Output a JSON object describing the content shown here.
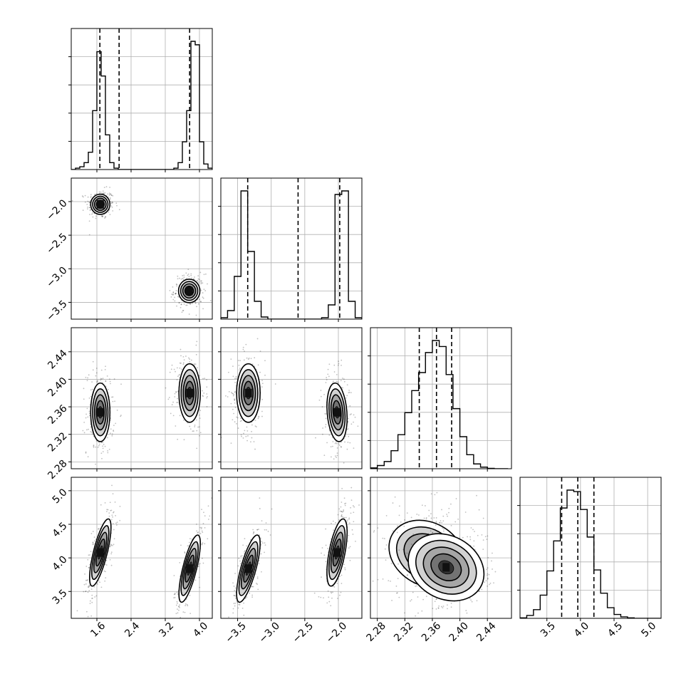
{
  "chart_data": {
    "type": "scatter",
    "grid": true,
    "parameters": [
      {
        "ticks": [
          "1.6",
          "2.4",
          "3.2",
          "4.0"
        ],
        "range": [
          1.0,
          4.3
        ],
        "quantiles": [
          1.67,
          2.12,
          3.77
        ],
        "hist": {
          "edges": [
            1.0,
            1.1,
            1.2,
            1.3,
            1.4,
            1.5,
            1.6,
            1.7,
            1.8,
            1.9,
            2.0,
            2.1,
            2.2,
            2.3,
            2.4,
            2.5,
            2.6,
            2.7,
            2.8,
            2.9,
            3.0,
            3.1,
            3.2,
            3.3,
            3.4,
            3.5,
            3.6,
            3.7,
            3.8,
            3.9,
            4.0,
            4.1,
            4.2,
            4.3
          ],
          "counts": [
            0,
            2,
            4,
            10,
            25,
            85,
            170,
            135,
            50,
            10,
            2,
            0,
            0,
            0,
            0,
            0,
            0,
            0,
            0,
            0,
            0,
            0,
            0,
            0,
            2,
            10,
            40,
            85,
            185,
            180,
            40,
            8,
            2
          ]
        }
      },
      {
        "ticks": [
          "-3.5",
          "-3.0",
          "-2.5",
          "-2.0"
        ],
        "range": [
          -3.75,
          -1.65
        ],
        "quantiles": [
          -3.35,
          -2.6,
          -1.98
        ],
        "hist": {
          "edges": [
            -3.75,
            -3.65,
            -3.55,
            -3.45,
            -3.35,
            -3.25,
            -3.15,
            -3.05,
            -2.95,
            -2.85,
            -2.75,
            -2.65,
            -2.55,
            -2.45,
            -2.35,
            -2.25,
            -2.15,
            -2.05,
            -1.95,
            -1.85,
            -1.75,
            -1.65
          ],
          "counts": [
            2,
            12,
            60,
            180,
            95,
            25,
            3,
            0,
            0,
            0,
            0,
            0,
            0,
            0,
            0,
            2,
            20,
            175,
            180,
            25,
            2
          ]
        }
      },
      {
        "ticks": [
          "2.28",
          "2.32",
          "2.36",
          "2.40",
          "2.44"
        ],
        "range": [
          2.27,
          2.475
        ],
        "quantiles": [
          2.341,
          2.366,
          2.388
        ],
        "hist": {
          "edges": [
            2.27,
            2.28,
            2.29,
            2.3,
            2.31,
            2.32,
            2.33,
            2.34,
            2.35,
            2.36,
            2.37,
            2.38,
            2.39,
            2.4,
            2.41,
            2.42,
            2.43,
            2.44,
            2.45,
            2.46,
            2.47
          ],
          "counts": [
            2,
            8,
            18,
            45,
            85,
            140,
            195,
            240,
            290,
            320,
            305,
            235,
            150,
            80,
            35,
            12,
            4,
            1,
            0,
            0
          ]
        }
      },
      {
        "ticks": [
          "3.5",
          "4.0",
          "4.5",
          "5.0"
        ],
        "range": [
          3.1,
          5.2
        ],
        "quantiles": [
          3.72,
          3.96,
          4.2
        ],
        "hist": {
          "edges": [
            3.1,
            3.2,
            3.3,
            3.4,
            3.5,
            3.6,
            3.7,
            3.8,
            3.9,
            4.0,
            4.1,
            4.2,
            4.3,
            4.4,
            4.5,
            4.6,
            4.7,
            4.8,
            4.9,
            5.0,
            5.1,
            5.2
          ],
          "counts": [
            1,
            6,
            18,
            48,
            98,
            160,
            228,
            265,
            262,
            225,
            168,
            100,
            52,
            22,
            8,
            3,
            1,
            0,
            0,
            0,
            0
          ]
        }
      }
    ],
    "pairs": [
      {
        "row": 1,
        "col": 0,
        "modes": [
          {
            "x": 1.68,
            "y": -2.04,
            "sx": 0.09,
            "sy": 0.06,
            "rho": 0.0,
            "w": 0.5
          },
          {
            "x": 3.76,
            "y": -3.33,
            "sx": 0.1,
            "sy": 0.07,
            "rho": 0.0,
            "w": 0.5
          }
        ]
      },
      {
        "row": 2,
        "col": 0,
        "modes": [
          {
            "x": 1.68,
            "y": 2.352,
            "sx": 0.09,
            "sy": 0.017,
            "rho": 0.0,
            "w": 0.5
          },
          {
            "x": 3.77,
            "y": 2.38,
            "sx": 0.1,
            "sy": 0.017,
            "rho": 0.0,
            "w": 0.5
          }
        ]
      },
      {
        "row": 2,
        "col": 1,
        "modes": [
          {
            "x": -3.34,
            "y": 2.38,
            "sx": 0.07,
            "sy": 0.017,
            "rho": 0.0,
            "w": 0.5
          },
          {
            "x": -2.02,
            "y": 2.352,
            "sx": 0.06,
            "sy": 0.017,
            "rho": -0.2,
            "w": 0.5
          }
        ]
      },
      {
        "row": 3,
        "col": 0,
        "modes": [
          {
            "x": 1.68,
            "y": 4.08,
            "sx": 0.1,
            "sy": 0.2,
            "rho": 0.75,
            "w": 0.5
          },
          {
            "x": 3.77,
            "y": 3.84,
            "sx": 0.1,
            "sy": 0.2,
            "rho": 0.75,
            "w": 0.5
          }
        ]
      },
      {
        "row": 3,
        "col": 1,
        "modes": [
          {
            "x": -3.34,
            "y": 3.84,
            "sx": 0.07,
            "sy": 0.2,
            "rho": 0.75,
            "w": 0.5
          },
          {
            "x": -2.02,
            "y": 4.08,
            "sx": 0.06,
            "sy": 0.2,
            "rho": 0.6,
            "w": 0.5
          }
        ]
      },
      {
        "row": 3,
        "col": 2,
        "modes": [
          {
            "x": 2.352,
            "y": 4.06,
            "sx": 0.022,
            "sy": 0.2,
            "rho": -0.2,
            "w": 0.5
          },
          {
            "x": 2.38,
            "y": 3.86,
            "sx": 0.022,
            "sy": 0.2,
            "rho": -0.2,
            "w": 0.5
          }
        ]
      }
    ]
  }
}
